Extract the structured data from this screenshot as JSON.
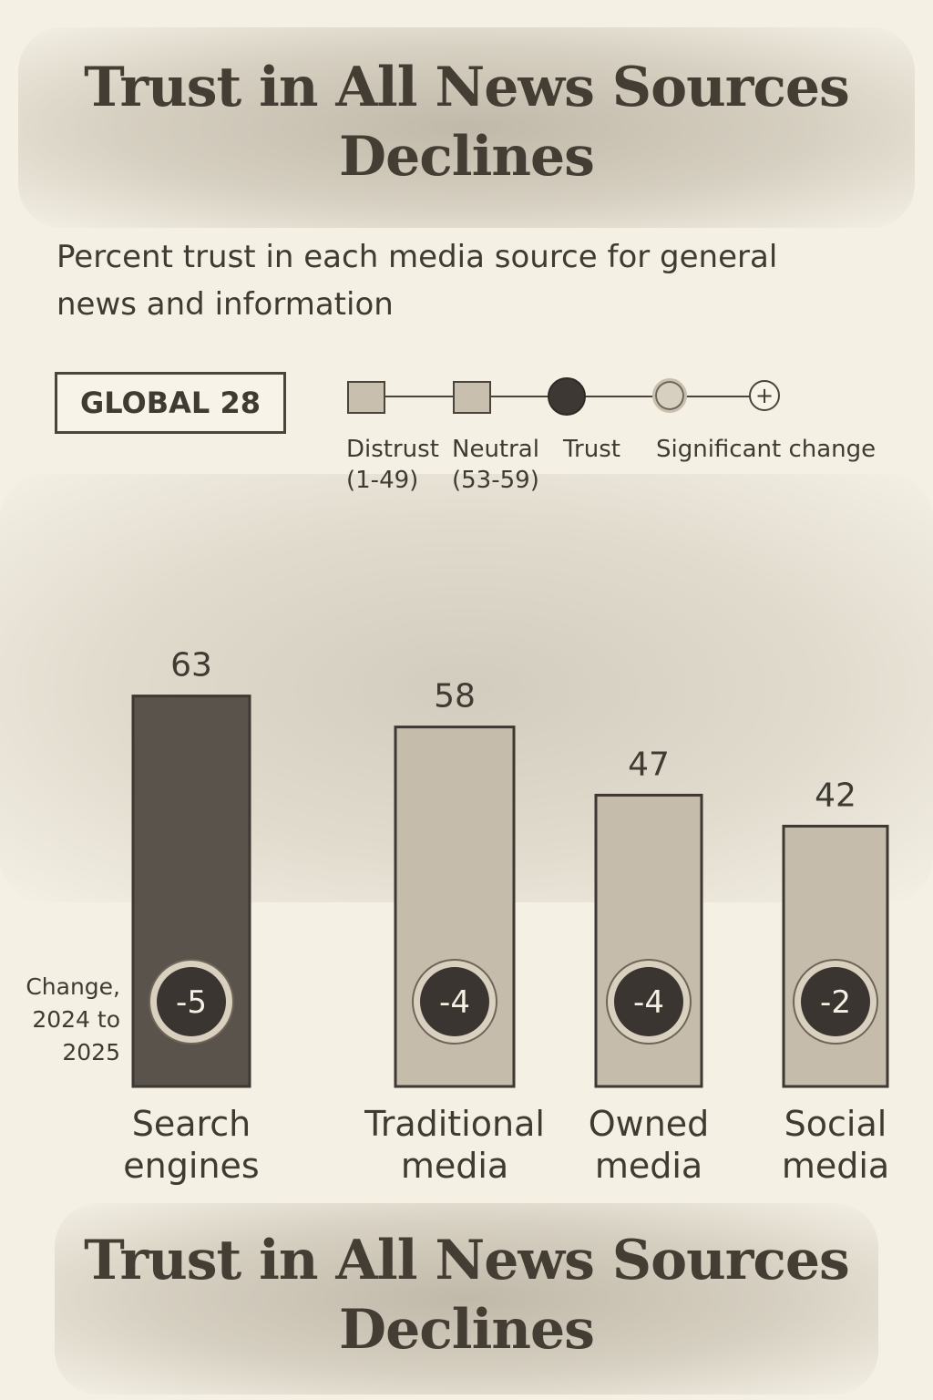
{
  "title_top": "Trust in All News Sources Declines",
  "title_bottom": "Trust in All News Sources Declines",
  "subtitle": "Percent trust in each media source for general news and information",
  "region": "GLOBAL 28",
  "legend": [
    {
      "label": "Distrust\n(1-49)",
      "icon": "square-icon"
    },
    {
      "label": "Neutral\n(53-59)",
      "icon": "square-icon"
    },
    {
      "label": "Trust",
      "icon": "filled-circle-icon"
    },
    {
      "label": "Significant change",
      "icon": "ringed-circle-icon"
    }
  ],
  "legend_plus": "+",
  "change_note": "Change,\n2024 to\n2025",
  "colors": {
    "trust": "#5a534b",
    "distrust": "#c6bcab",
    "neutral": "#c6bcab",
    "badge": "#3a3530",
    "background": "#f4f0e4"
  },
  "chart_data": {
    "type": "bar",
    "title": "Trust in All News Sources Declines",
    "subtitle": "Percent trust in each media source for general news and information",
    "categories": [
      "Search engines",
      "Traditional media",
      "Owned media",
      "Social media"
    ],
    "values": [
      63,
      58,
      47,
      42
    ],
    "changes": [
      "-5",
      "-4",
      "-4",
      "-2"
    ],
    "levels": [
      "Trust",
      "Neutral",
      "Distrust",
      "Distrust"
    ],
    "ylim": [
      0,
      80
    ],
    "grid": false,
    "legend_position": "top"
  }
}
